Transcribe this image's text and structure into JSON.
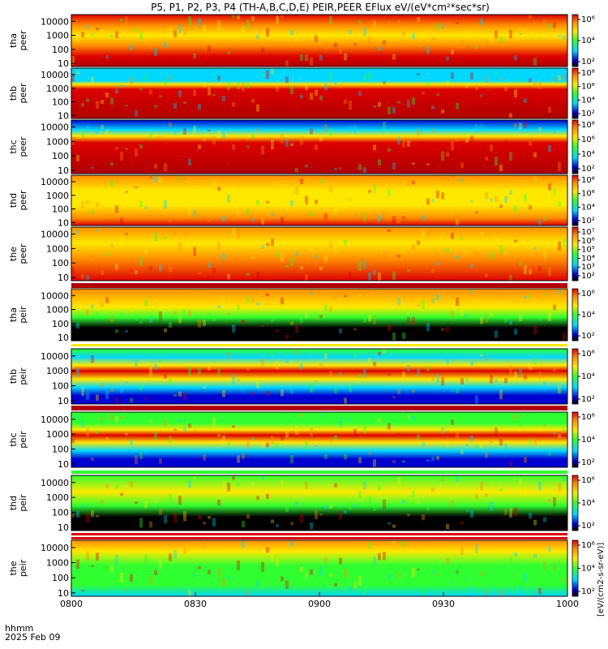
{
  "chart_data": {
    "type": "heatmap",
    "title": "P5, P1, P2, P3, P4 (TH-A,B,C,D,E) PEIR,PEER EFlux eV/(eV*cm²*sec*sr)",
    "xlabel": "hhmm",
    "date_label": "2025 Feb 09",
    "x_ticks": [
      "0800",
      "0830",
      "0900",
      "0930",
      "1000"
    ],
    "x_range": [
      "0800",
      "1000"
    ],
    "y_ticks": [
      "10000",
      "1000",
      "100",
      "10"
    ],
    "y_scale": "log",
    "ylim": [
      6,
      30000
    ],
    "colorbar_label": "[eV/(cm2-s-sr-eV)]",
    "colorbar_unit": "eV/(cm²-s-sr-eV)",
    "colorbar_scale": "log",
    "colorbar_ticks": [
      [
        "10⁶",
        "10⁴",
        "10²"
      ],
      [
        "10⁸",
        "10⁶",
        "10⁴",
        "10²"
      ],
      [
        "10⁸",
        "10⁶",
        "10⁴",
        "10²"
      ],
      [
        "10⁸",
        "10⁶",
        "10⁴",
        "10²"
      ],
      [
        "10⁷",
        "10⁶",
        "10⁵",
        "10⁴",
        "10³",
        "10²"
      ],
      [
        "10⁶",
        "10⁴",
        "10²"
      ],
      [
        "10⁶",
        "10⁴",
        "10²"
      ],
      [
        "10⁶",
        "10⁴",
        "10²"
      ],
      [
        "10⁶",
        "10⁴",
        "10²"
      ],
      [
        "10⁶",
        "10⁴",
        "10²"
      ]
    ],
    "panels": [
      {
        "probe": "tha",
        "instrument": "peer",
        "label": "tha\npeer"
      },
      {
        "probe": "thb",
        "instrument": "peer",
        "label": "thb\npeer"
      },
      {
        "probe": "thc",
        "instrument": "peer",
        "label": "thc\npeer"
      },
      {
        "probe": "thd",
        "instrument": "peer",
        "label": "thd\npeer"
      },
      {
        "probe": "the",
        "instrument": "peer",
        "label": "the\npeer"
      },
      {
        "probe": "tha",
        "instrument": "peir",
        "label": "tha\npeir"
      },
      {
        "probe": "thb",
        "instrument": "peir",
        "label": "thb\npeir"
      },
      {
        "probe": "thc",
        "instrument": "peir",
        "label": "thc\npeir"
      },
      {
        "probe": "thd",
        "instrument": "peir",
        "label": "thd\npeir"
      },
      {
        "probe": "the",
        "instrument": "peir",
        "label": "the\npeir"
      }
    ],
    "colors": {
      "black": "#000000",
      "blue": "#0000d0",
      "cyan": "#00d8ff",
      "green": "#30ff30",
      "yellow": "#ffe800",
      "orange": "#ff8c00",
      "red": "#dd0000",
      "dark_red": "#b00000"
    }
  }
}
